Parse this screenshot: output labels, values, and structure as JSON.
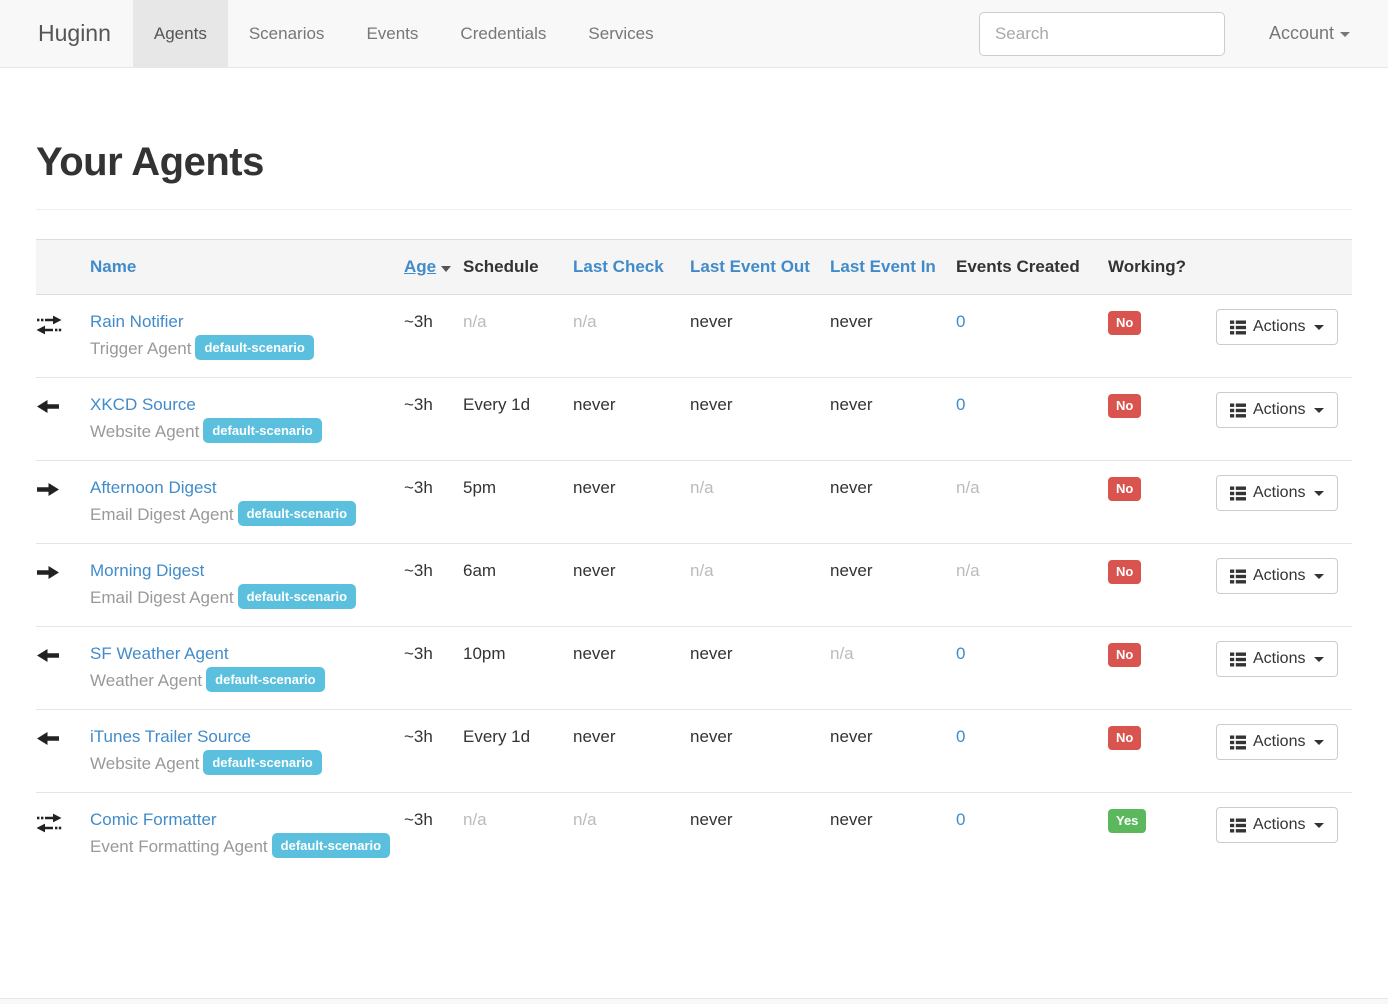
{
  "navbar": {
    "brand": "Huginn",
    "items": [
      {
        "label": "Agents",
        "active": true
      },
      {
        "label": "Scenarios",
        "active": false
      },
      {
        "label": "Events",
        "active": false
      },
      {
        "label": "Credentials",
        "active": false
      },
      {
        "label": "Services",
        "active": false
      }
    ],
    "search_placeholder": "Search",
    "account_label": "Account"
  },
  "page": {
    "title": "Your Agents"
  },
  "table": {
    "headers": {
      "name": "Name",
      "age": "Age",
      "schedule": "Schedule",
      "last_check": "Last Check",
      "last_event_out": "Last Event Out",
      "last_event_in": "Last Event In",
      "events_created": "Events Created",
      "working": "Working?"
    },
    "actions_label": "Actions",
    "rows": [
      {
        "icon": "exchange",
        "name": "Rain Notifier",
        "type": "Trigger Agent",
        "badge": "default-scenario",
        "age": "~3h",
        "schedule": "n/a",
        "last_check": "n/a",
        "last_event_out": "never",
        "last_event_in": "never",
        "events_created": "0",
        "working": "No"
      },
      {
        "icon": "arrow-left",
        "name": "XKCD Source",
        "type": "Website Agent",
        "badge": "default-scenario",
        "age": "~3h",
        "schedule": "Every 1d",
        "last_check": "never",
        "last_event_out": "never",
        "last_event_in": "never",
        "events_created": "0",
        "working": "No"
      },
      {
        "icon": "arrow-right",
        "name": "Afternoon Digest",
        "type": "Email Digest Agent",
        "badge": "default-scenario",
        "age": "~3h",
        "schedule": "5pm",
        "last_check": "never",
        "last_event_out": "n/a",
        "last_event_in": "never",
        "events_created": "n/a",
        "working": "No"
      },
      {
        "icon": "arrow-right",
        "name": "Morning Digest",
        "type": "Email Digest Agent",
        "badge": "default-scenario",
        "age": "~3h",
        "schedule": "6am",
        "last_check": "never",
        "last_event_out": "n/a",
        "last_event_in": "never",
        "events_created": "n/a",
        "working": "No"
      },
      {
        "icon": "arrow-left",
        "name": "SF Weather Agent",
        "type": "Weather Agent",
        "badge": "default-scenario",
        "age": "~3h",
        "schedule": "10pm",
        "last_check": "never",
        "last_event_out": "never",
        "last_event_in": "n/a",
        "events_created": "0",
        "working": "No"
      },
      {
        "icon": "arrow-left",
        "name": "iTunes Trailer Source",
        "type": "Website Agent",
        "badge": "default-scenario",
        "age": "~3h",
        "schedule": "Every 1d",
        "last_check": "never",
        "last_event_out": "never",
        "last_event_in": "never",
        "events_created": "0",
        "working": "No"
      },
      {
        "icon": "exchange",
        "name": "Comic Formatter",
        "type": "Event Formatting Agent",
        "badge": "default-scenario",
        "age": "~3h",
        "schedule": "n/a",
        "last_check": "n/a",
        "last_event_out": "never",
        "last_event_in": "never",
        "events_created": "0",
        "working": "Yes"
      }
    ]
  },
  "colors": {
    "accent_blue": "#428bca",
    "badge_info": "#5bc0de",
    "label_danger": "#d9534f",
    "label_success": "#5cb85c"
  }
}
